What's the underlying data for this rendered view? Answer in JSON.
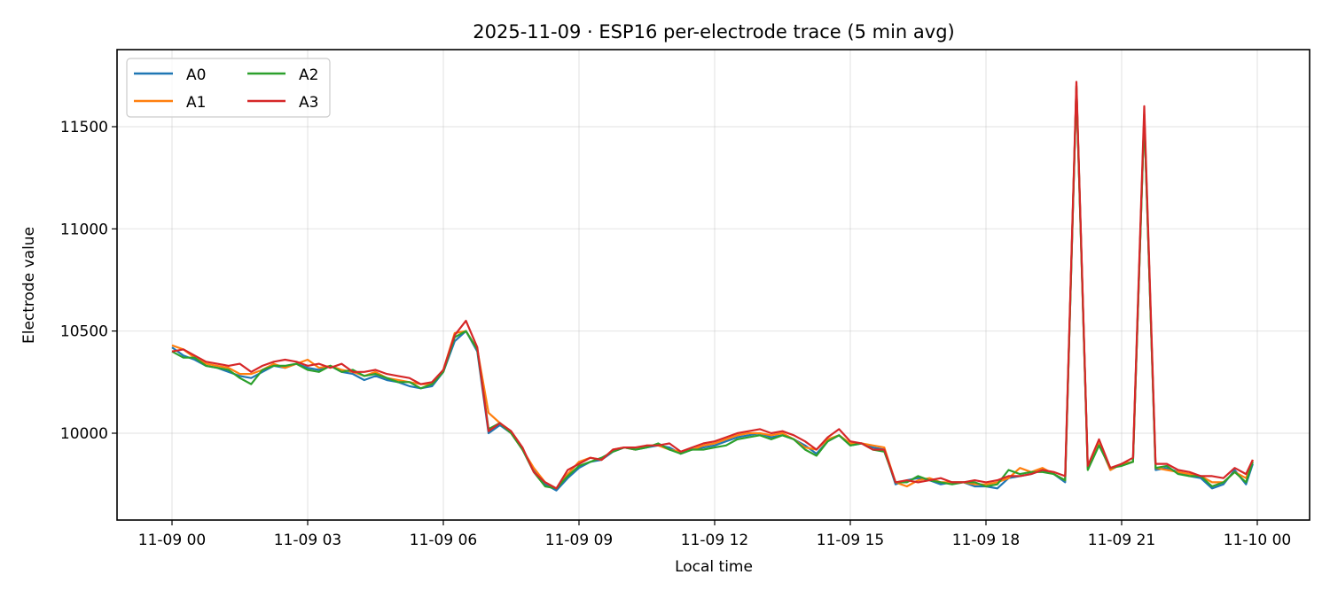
{
  "chart_data": {
    "type": "line",
    "title": "2025-11-09 · ESP16 per-electrode trace (5 min avg)",
    "xlabel": "Local time",
    "ylabel": "Electrode value",
    "xlim_hours": [
      -1.2,
      25.2
    ],
    "ylim": [
      9575,
      11880
    ],
    "grid": true,
    "legend_position": "upper left",
    "legend_columns": 2,
    "x_ticks": [
      {
        "hour": 0,
        "label": "11-09 00"
      },
      {
        "hour": 3,
        "label": "11-09 03"
      },
      {
        "hour": 6,
        "label": "11-09 06"
      },
      {
        "hour": 9,
        "label": "11-09 09"
      },
      {
        "hour": 12,
        "label": "11-09 12"
      },
      {
        "hour": 15,
        "label": "11-09 15"
      },
      {
        "hour": 18,
        "label": "11-09 18"
      },
      {
        "hour": 21,
        "label": "11-09 21"
      },
      {
        "hour": 24,
        "label": "11-10 00"
      }
    ],
    "y_ticks": [
      {
        "value": 10000,
        "label": "10000"
      },
      {
        "value": 10500,
        "label": "10500"
      },
      {
        "value": 11000,
        "label": "11000"
      },
      {
        "value": 11500,
        "label": "11500"
      }
    ],
    "x_hours": [
      0,
      0.25,
      0.5,
      0.75,
      1,
      1.25,
      1.5,
      1.75,
      2,
      2.25,
      2.5,
      2.75,
      3,
      3.25,
      3.5,
      3.75,
      4,
      4.25,
      4.5,
      4.75,
      5,
      5.25,
      5.5,
      5.75,
      6,
      6.25,
      6.5,
      6.75,
      7,
      7.25,
      7.5,
      7.75,
      8,
      8.25,
      8.5,
      8.75,
      9,
      9.25,
      9.5,
      9.75,
      10,
      10.25,
      10.5,
      10.75,
      11,
      11.25,
      11.5,
      11.75,
      12,
      12.25,
      12.5,
      12.75,
      13,
      13.25,
      13.5,
      13.75,
      14,
      14.25,
      14.5,
      14.75,
      15,
      15.25,
      15.5,
      15.75,
      16,
      16.25,
      16.5,
      16.75,
      17,
      17.25,
      17.5,
      17.75,
      18,
      18.25,
      18.5,
      18.75,
      19,
      19.25,
      19.5,
      19.75,
      20,
      20.25,
      20.5,
      20.75,
      21,
      21.25,
      21.5,
      21.75,
      22,
      22.25,
      22.5,
      22.75,
      23,
      23.25,
      23.5,
      23.75,
      23.9
    ],
    "series": [
      {
        "name": "A0",
        "color": "#1f77b4",
        "values": [
          10420,
          10380,
          10360,
          10330,
          10320,
          10300,
          10280,
          10270,
          10300,
          10330,
          10320,
          10340,
          10320,
          10310,
          10330,
          10300,
          10290,
          10260,
          10280,
          10260,
          10250,
          10230,
          10220,
          10230,
          10300,
          10450,
          10500,
          10400,
          10000,
          10040,
          10000,
          9920,
          9820,
          9750,
          9720,
          9780,
          9830,
          9860,
          9870,
          9910,
          9930,
          9920,
          9930,
          9940,
          9930,
          9900,
          9920,
          9930,
          9940,
          9960,
          9980,
          9990,
          10000,
          9980,
          9990,
          9970,
          9940,
          9900,
          9960,
          9990,
          9940,
          9950,
          9930,
          9920,
          9750,
          9770,
          9780,
          9770,
          9750,
          9760,
          9760,
          9740,
          9740,
          9730,
          9780,
          9790,
          9800,
          9820,
          9800,
          9760,
          11700,
          9830,
          9950,
          9820,
          9850,
          9860,
          11560,
          9820,
          9830,
          9810,
          9790,
          9780,
          9730,
          9750,
          9820,
          9750,
          9850,
          9860,
          9760
        ]
      },
      {
        "name": "A1",
        "color": "#ff7f0e",
        "values": [
          10430,
          10410,
          10370,
          10340,
          10330,
          10320,
          10290,
          10290,
          10310,
          10340,
          10320,
          10340,
          10360,
          10320,
          10330,
          10310,
          10300,
          10280,
          10300,
          10270,
          10260,
          10250,
          10240,
          10240,
          10310,
          10490,
          10500,
          10410,
          10100,
          10050,
          10000,
          9920,
          9830,
          9760,
          9730,
          9800,
          9860,
          9880,
          9870,
          9920,
          9930,
          9920,
          9940,
          9940,
          9920,
          9910,
          9920,
          9940,
          9950,
          9970,
          9990,
          10000,
          10000,
          9990,
          10000,
          9970,
          9930,
          9920,
          9970,
          9990,
          9950,
          9950,
          9940,
          9930,
          9760,
          9740,
          9770,
          9780,
          9760,
          9760,
          9760,
          9750,
          9750,
          9760,
          9780,
          9830,
          9810,
          9830,
          9800,
          9770,
          11700,
          9830,
          9950,
          9820,
          9850,
          9860,
          11560,
          9830,
          9820,
          9810,
          9800,
          9790,
          9760,
          9760,
          9810,
          9780,
          9870,
          9910,
          9770
        ]
      },
      {
        "name": "A2",
        "color": "#2ca02c",
        "values": [
          10400,
          10370,
          10370,
          10330,
          10320,
          10310,
          10270,
          10240,
          10310,
          10330,
          10330,
          10340,
          10310,
          10300,
          10330,
          10300,
          10310,
          10280,
          10290,
          10270,
          10250,
          10250,
          10220,
          10240,
          10300,
          10470,
          10500,
          10410,
          10020,
          10050,
          10000,
          9920,
          9810,
          9740,
          9730,
          9790,
          9840,
          9860,
          9880,
          9910,
          9930,
          9920,
          9930,
          9950,
          9920,
          9900,
          9920,
          9920,
          9930,
          9940,
          9970,
          9980,
          9990,
          9970,
          9990,
          9970,
          9920,
          9890,
          9960,
          9990,
          9940,
          9950,
          9920,
          9910,
          9760,
          9760,
          9790,
          9770,
          9760,
          9750,
          9760,
          9760,
          9740,
          9750,
          9820,
          9800,
          9810,
          9810,
          9800,
          9770,
          11690,
          9820,
          9940,
          9830,
          9840,
          9860,
          11550,
          9830,
          9840,
          9800,
          9790,
          9790,
          9740,
          9760,
          9810,
          9760,
          9860,
          9860,
          9780
        ]
      },
      {
        "name": "A3",
        "color": "#d62728",
        "values": [
          10400,
          10410,
          10380,
          10350,
          10340,
          10330,
          10340,
          10300,
          10330,
          10350,
          10360,
          10350,
          10330,
          10340,
          10320,
          10340,
          10300,
          10300,
          10310,
          10290,
          10280,
          10270,
          10240,
          10250,
          10310,
          10480,
          10550,
          10420,
          10010,
          10050,
          10010,
          9930,
          9810,
          9760,
          9730,
          9820,
          9850,
          9880,
          9870,
          9920,
          9930,
          9930,
          9940,
          9940,
          9950,
          9910,
          9930,
          9950,
          9960,
          9980,
          10000,
          10010,
          10020,
          10000,
          10010,
          9990,
          9960,
          9920,
          9980,
          10020,
          9960,
          9950,
          9920,
          9920,
          9760,
          9770,
          9760,
          9770,
          9780,
          9760,
          9760,
          9770,
          9760,
          9770,
          9790,
          9790,
          9800,
          9820,
          9810,
          9790,
          11720,
          9840,
          9970,
          9830,
          9850,
          9880,
          11600,
          9850,
          9850,
          9820,
          9810,
          9790,
          9790,
          9780,
          9830,
          9800,
          9870,
          9870,
          9810
        ]
      }
    ]
  },
  "legend": {
    "items": [
      {
        "label": "A0",
        "color": "#1f77b4"
      },
      {
        "label": "A1",
        "color": "#ff7f0e"
      },
      {
        "label": "A2",
        "color": "#2ca02c"
      },
      {
        "label": "A3",
        "color": "#d62728"
      }
    ]
  }
}
